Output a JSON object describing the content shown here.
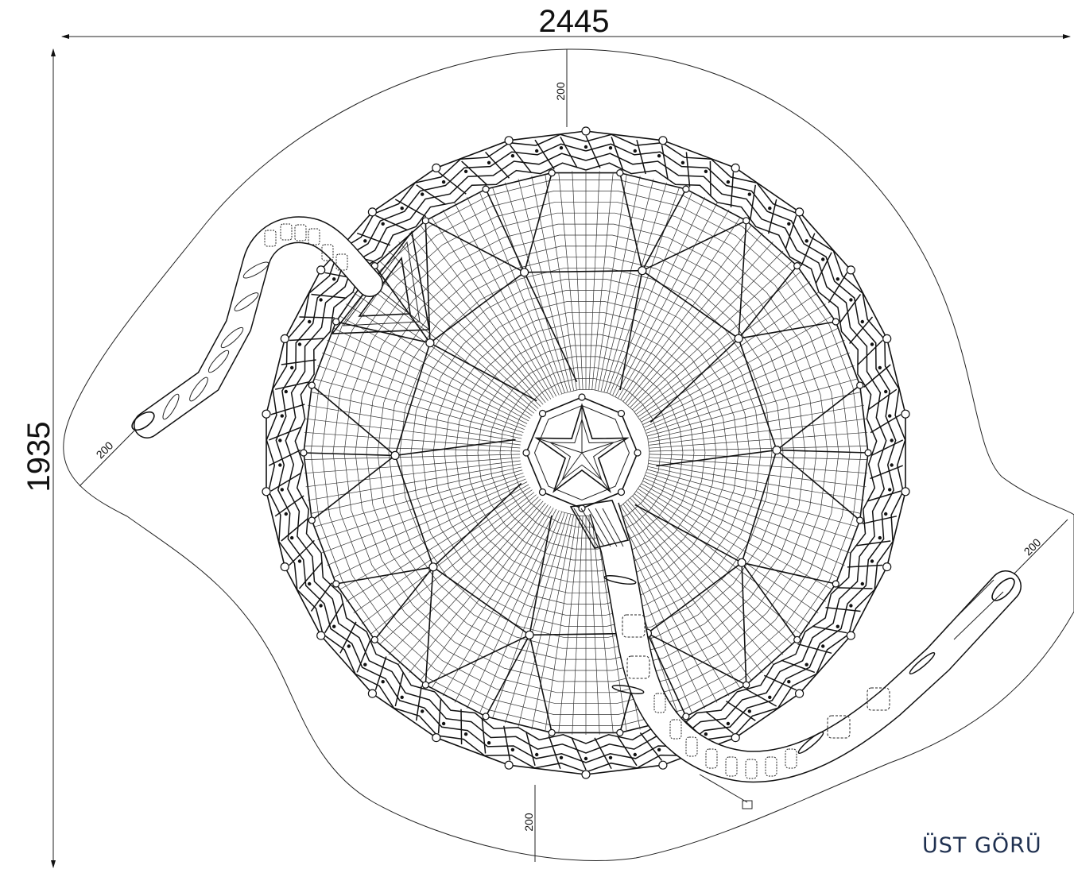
{
  "dimensions": {
    "width": "2445",
    "height": "1935",
    "clearance_top": "200",
    "clearance_left": "200",
    "clearance_right": "200",
    "clearance_bottom": "200"
  },
  "view_label": "ÜST GÖRÜ",
  "colors": {
    "line": "#111111",
    "label": "#1f3050"
  }
}
